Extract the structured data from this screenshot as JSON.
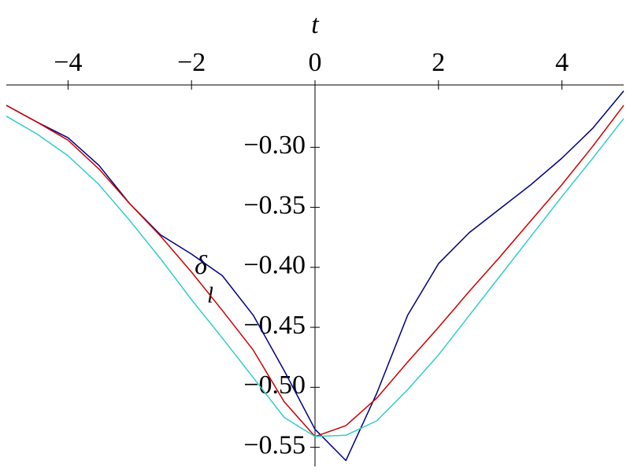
{
  "chart_data": {
    "type": "line",
    "xlabel": "t",
    "ylabel": {
      "main": "δ",
      "sub": "l"
    },
    "x": [
      -5,
      -4.5,
      -4,
      -3.5,
      -3,
      -2.5,
      -2,
      -1.5,
      -1,
      -0.5,
      0,
      0.5,
      1,
      1.5,
      2,
      2.5,
      3,
      3.5,
      4,
      4.5,
      5
    ],
    "series": [
      {
        "color": "#000080",
        "values": [
          -0.265,
          -0.279,
          -0.292,
          -0.315,
          -0.347,
          -0.373,
          -0.389,
          -0.407,
          -0.44,
          -0.486,
          -0.535,
          -0.561,
          -0.505,
          -0.44,
          -0.397,
          -0.371,
          -0.351,
          -0.331,
          -0.309,
          -0.284,
          -0.253
        ]
      },
      {
        "color": "#cc0000",
        "values": [
          -0.265,
          -0.279,
          -0.294,
          -0.318,
          -0.347,
          -0.374,
          -0.404,
          -0.436,
          -0.469,
          -0.512,
          -0.541,
          -0.532,
          -0.509,
          -0.479,
          -0.45,
          -0.42,
          -0.391,
          -0.361,
          -0.331,
          -0.299,
          -0.265
        ]
      },
      {
        "color": "#33cccc",
        "values": [
          -0.274,
          -0.289,
          -0.307,
          -0.331,
          -0.361,
          -0.393,
          -0.427,
          -0.459,
          -0.492,
          -0.525,
          -0.541,
          -0.54,
          -0.528,
          -0.502,
          -0.473,
          -0.44,
          -0.407,
          -0.374,
          -0.341,
          -0.309,
          -0.276
        ]
      }
    ],
    "xlim": [
      -5,
      5
    ],
    "ylim": [
      -0.566,
      -0.248
    ],
    "xticks": [
      {
        "value": -4,
        "label": "−4"
      },
      {
        "value": -2,
        "label": "−2"
      },
      0,
      2,
      4
    ],
    "yticks": [
      {
        "value": -0.3,
        "label": "−0.30"
      },
      {
        "value": -0.35,
        "label": "−0.35"
      },
      {
        "value": -0.4,
        "label": "−0.40"
      },
      {
        "value": -0.45,
        "label": "−0.45"
      },
      {
        "value": -0.5,
        "label": "−0.50"
      },
      {
        "value": -0.55,
        "label": "−0.55"
      }
    ],
    "grid": false
  }
}
